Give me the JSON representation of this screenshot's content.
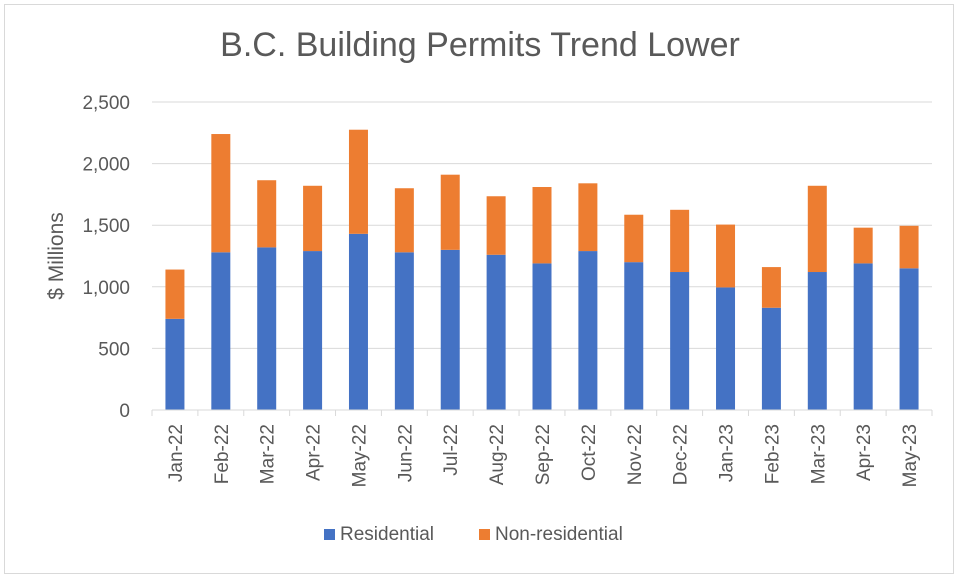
{
  "chart_data": {
    "type": "bar",
    "stacked": true,
    "title": "B.C. Building Permits Trend Lower",
    "xlabel": "",
    "ylabel": "$ Millions",
    "ylim": [
      0,
      2500
    ],
    "yticks": [
      "0",
      "500",
      "1,000",
      "1,500",
      "2,000",
      "2,500"
    ],
    "grid": true,
    "legend": "bottom",
    "categories": [
      "Jan-22",
      "Feb-22",
      "Mar-22",
      "Apr-22",
      "May-22",
      "Jun-22",
      "Jul-22",
      "Aug-22",
      "Sep-22",
      "Oct-22",
      "Nov-22",
      "Dec-22",
      "Jan-23",
      "Feb-23",
      "Mar-23",
      "Apr-23",
      "May-23"
    ],
    "series": [
      {
        "name": "Residential",
        "color": "#4472c4",
        "values": [
          740,
          1280,
          1320,
          1290,
          1430,
          1280,
          1300,
          1260,
          1190,
          1290,
          1200,
          1120,
          995,
          830,
          1120,
          1190,
          1150
        ]
      },
      {
        "name": "Non-residential",
        "color": "#ed7d31",
        "values": [
          400,
          960,
          545,
          530,
          845,
          520,
          610,
          475,
          620,
          550,
          385,
          505,
          510,
          330,
          700,
          290,
          345
        ]
      }
    ]
  }
}
